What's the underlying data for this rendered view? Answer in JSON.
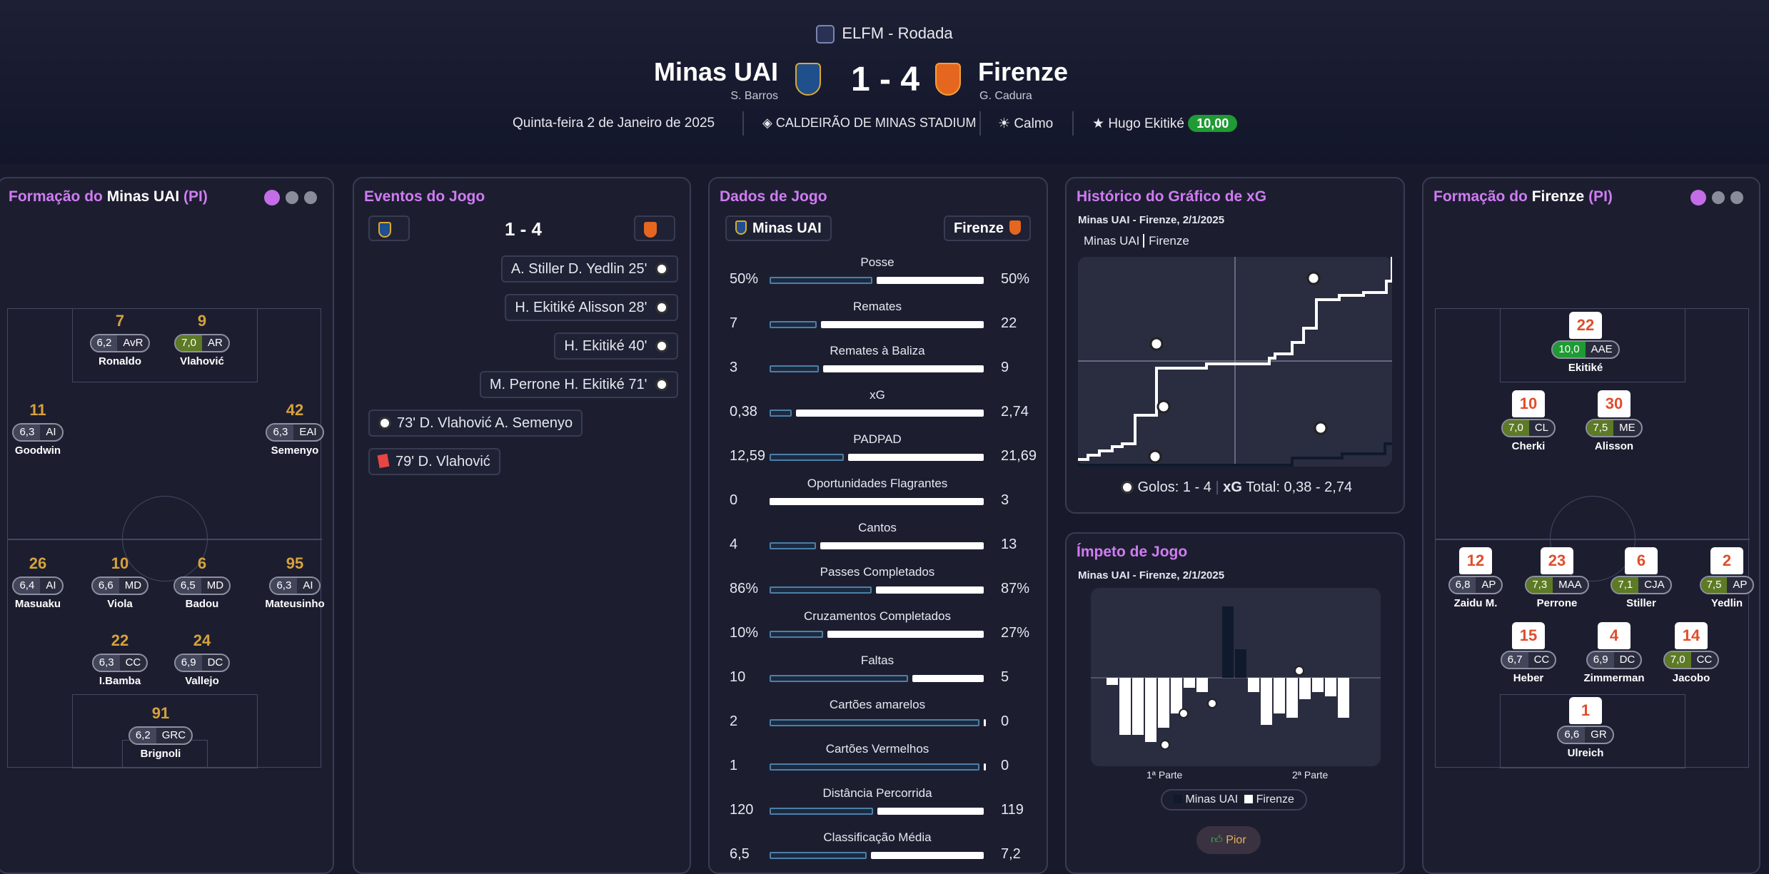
{
  "header": {
    "competition": "ELFM - Rodada",
    "home": {
      "name": "Minas UAI",
      "coach": "S. Barros"
    },
    "away": {
      "name": "Firenze",
      "coach": "G. Cadura"
    },
    "score": "1 - 4",
    "date": "Quinta-feira 2 de Janeiro de 2025",
    "stadium": "CALDEIRÃO DE MINAS STADIUM",
    "weather": "Calmo",
    "potm": "Hugo Ekitiké",
    "potm_rating": "10,00"
  },
  "home_lineup": {
    "title_prefix": "Formação do ",
    "team": "Minas UAI",
    "suffix": " (PI)",
    "players": [
      {
        "num": "7",
        "rating": "6,2",
        "pos": "AvR",
        "name": "Ronaldo"
      },
      {
        "num": "9",
        "rating": "7,0",
        "pos": "AR",
        "name": "Vlahović"
      },
      {
        "num": "11",
        "rating": "6,3",
        "pos": "AI",
        "name": "Goodwin"
      },
      {
        "num": "42",
        "rating": "6,3",
        "pos": "EAI",
        "name": "Semenyo"
      },
      {
        "num": "26",
        "rating": "6,4",
        "pos": "AI",
        "name": "Masuaku"
      },
      {
        "num": "10",
        "rating": "6,6",
        "pos": "MD",
        "name": "Viola"
      },
      {
        "num": "6",
        "rating": "6,5",
        "pos": "MD",
        "name": "Badou"
      },
      {
        "num": "95",
        "rating": "6,3",
        "pos": "AI",
        "name": "Mateusinho"
      },
      {
        "num": "22",
        "rating": "6,3",
        "pos": "CC",
        "name": "I.Bamba"
      },
      {
        "num": "24",
        "rating": "6,9",
        "pos": "DC",
        "name": "Vallejo"
      },
      {
        "num": "91",
        "rating": "6,2",
        "pos": "GRC",
        "name": "Brignoli"
      }
    ]
  },
  "events": {
    "title": "Eventos do Jogo",
    "score": "1 - 4",
    "items": [
      {
        "text": "A. Stiller  D. Yedlin 25'"
      },
      {
        "text": "H. Ekitiké  Alisson 28'"
      },
      {
        "text": "H. Ekitiké 40'"
      },
      {
        "text": "M. Perrone  H. Ekitiké 71'"
      },
      {
        "text": "73'  D. Vlahović  A. Semenyo"
      },
      {
        "text": "79'  D. Vlahović"
      }
    ]
  },
  "stats": {
    "title": "Dados de Jogo",
    "home": "Minas UAI",
    "away": "Firenze",
    "rows": [
      {
        "label": "Posse",
        "home": "50%",
        "away": "50%",
        "h": 50,
        "a": 50
      },
      {
        "label": "Remates",
        "home": "7",
        "away": "22",
        "h": 7,
        "a": 22
      },
      {
        "label": "Remates à Baliza",
        "home": "3",
        "away": "9",
        "h": 3,
        "a": 9
      },
      {
        "label": "xG",
        "home": "0,38",
        "away": "2,74",
        "h": 0.38,
        "a": 2.74
      },
      {
        "label": "PADPAD",
        "home": "12,59",
        "away": "21,69",
        "h": 12.59,
        "a": 21.69
      },
      {
        "label": "Oportunidades Flagrantes",
        "home": "0",
        "away": "3",
        "h": 0,
        "a": 3
      },
      {
        "label": "Cantos",
        "home": "4",
        "away": "13",
        "h": 4,
        "a": 13
      },
      {
        "label": "Passes Completados",
        "home": "86%",
        "away": "87%",
        "h": 86,
        "a": 87
      },
      {
        "label": "Cruzamentos Completados",
        "home": "10%",
        "away": "27%",
        "h": 10,
        "a": 27
      },
      {
        "label": "Faltas",
        "home": "10",
        "away": "5",
        "h": 10,
        "a": 5
      },
      {
        "label": "Cartões amarelos",
        "home": "2",
        "away": "0",
        "h": 2,
        "a": 0
      },
      {
        "label": "Cartões Vermelhos",
        "home": "1",
        "away": "0",
        "h": 1,
        "a": 0
      },
      {
        "label": "Distância Percorrida",
        "home": "120",
        "away": "119",
        "h": 120,
        "a": 119
      },
      {
        "label": "Classificação Média",
        "home": "6,5",
        "away": "7,2",
        "h": 6.5,
        "a": 7.2
      }
    ]
  },
  "xg": {
    "title": "Histórico do Gráfico de xG",
    "subtitle": "Minas UAI - Firenze, 2/1/2025",
    "legend_home": "Minas UAI",
    "legend_away": "Firenze",
    "goals_label": "Golos: 1 - 4",
    "xg_label": "xG",
    "xg_total": "Total: 0,38 - 2,74"
  },
  "momentum": {
    "title": "Ímpeto de Jogo",
    "subtitle": "Minas UAI - Firenze, 2/1/2025",
    "half1": "1ª Parte",
    "half2": "2ª Parte",
    "legend_home": "Minas UAI",
    "legend_away": "Firenze",
    "button": "Pior"
  },
  "away_lineup": {
    "title_prefix": "Formação do ",
    "team": "Firenze",
    "suffix": " (PI)",
    "players": [
      {
        "num": "22",
        "rating": "10,0",
        "pos": "AAE",
        "name": "Ekitiké"
      },
      {
        "num": "10",
        "rating": "7,0",
        "pos": "CL",
        "name": "Cherki"
      },
      {
        "num": "30",
        "rating": "7,5",
        "pos": "ME",
        "name": "Alisson"
      },
      {
        "num": "12",
        "rating": "6,8",
        "pos": "AP",
        "name": "Zaidu M."
      },
      {
        "num": "23",
        "rating": "7,3",
        "pos": "MAA",
        "name": "Perrone"
      },
      {
        "num": "6",
        "rating": "7,1",
        "pos": "CJA",
        "name": "Stiller"
      },
      {
        "num": "2",
        "rating": "7,5",
        "pos": "AP",
        "name": "Yedlin"
      },
      {
        "num": "15",
        "rating": "6,7",
        "pos": "CC",
        "name": "Heber"
      },
      {
        "num": "4",
        "rating": "6,9",
        "pos": "DC",
        "name": "Zimmerman"
      },
      {
        "num": "14",
        "rating": "7,0",
        "pos": "CC",
        "name": "Jacobo"
      },
      {
        "num": "1",
        "rating": "6,6",
        "pos": "GR",
        "name": "Ulreich"
      }
    ]
  }
}
